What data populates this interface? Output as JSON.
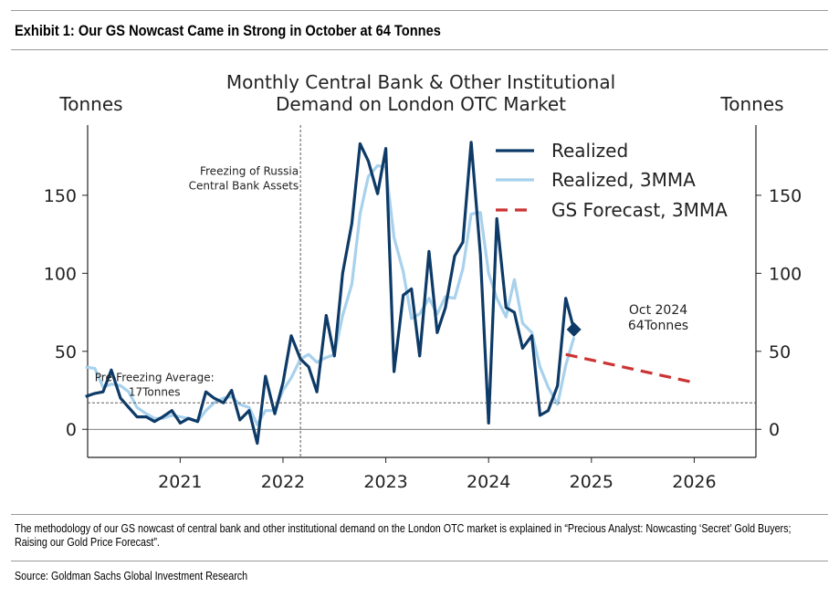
{
  "exhibit": {
    "title": "Exhibit 1: Our GS Nowcast Came in Strong in October at 64 Tonnes",
    "footnote": "The methodology of our GS nowcast of central bank and other institutional demand on the London OTC market is explained in “Precious Analyst: Nowcasting ‘Secret’ Gold Buyers; Raising our Gold Price Forecast”.",
    "source": "Source: Goldman Sachs Global Investment Research"
  },
  "chart_data": {
    "type": "line",
    "title_lines": [
      "Monthly Central Bank & Other Institutional",
      "Demand on London OTC Market"
    ],
    "ylabel_left": "Tonnes",
    "ylabel_right": "Tonnes",
    "xlim": [
      2020.1,
      2026.6
    ],
    "ylim": [
      -18,
      195
    ],
    "x_ticks": [
      2021,
      2022,
      2023,
      2024,
      2025,
      2026
    ],
    "x_tick_labels": [
      "2021",
      "2022",
      "2023",
      "2024",
      "2025",
      "2026"
    ],
    "y_ticks": [
      0,
      50,
      100,
      150
    ],
    "y_tick_labels": [
      "0",
      "50",
      "100",
      "150"
    ],
    "grid": false,
    "legend_position": "top-right",
    "colors": {
      "realized": "#0d3a66",
      "realized_3mma": "#a7d1ec",
      "forecast": "#cc3333",
      "reference": "#444444"
    },
    "series": [
      {
        "name": "Realized",
        "x": [
          2020.08,
          2020.17,
          2020.25,
          2020.33,
          2020.42,
          2020.5,
          2020.58,
          2020.67,
          2020.75,
          2020.83,
          2020.92,
          2021.0,
          2021.08,
          2021.17,
          2021.25,
          2021.33,
          2021.42,
          2021.5,
          2021.58,
          2021.67,
          2021.75,
          2021.83,
          2021.92,
          2022.0,
          2022.08,
          2022.17,
          2022.25,
          2022.33,
          2022.42,
          2022.5,
          2022.58,
          2022.67,
          2022.75,
          2022.83,
          2022.92,
          2023.0,
          2023.08,
          2023.17,
          2023.25,
          2023.33,
          2023.42,
          2023.5,
          2023.58,
          2023.67,
          2023.75,
          2023.83,
          2023.92,
          2024.0,
          2024.08,
          2024.17,
          2024.25,
          2024.33,
          2024.42,
          2024.5,
          2024.58,
          2024.67,
          2024.75,
          2024.83
        ],
        "values": [
          21,
          23,
          24,
          38,
          20,
          14,
          8,
          8,
          5,
          8,
          12,
          4,
          7,
          5,
          24,
          20,
          17,
          25,
          6,
          12,
          -9,
          34,
          10,
          30,
          60,
          45,
          40,
          24,
          73,
          47,
          100,
          132,
          183,
          172,
          151,
          180,
          37,
          86,
          90,
          47,
          114,
          62,
          78,
          111,
          120,
          184,
          112,
          4,
          135,
          78,
          75,
          52,
          60,
          9,
          12,
          28,
          84,
          64
        ]
      },
      {
        "name": "Realized, 3MMA",
        "x": [
          2020.08,
          2020.17,
          2020.25,
          2020.33,
          2020.42,
          2020.5,
          2020.58,
          2020.67,
          2020.75,
          2020.83,
          2020.92,
          2021.0,
          2021.08,
          2021.17,
          2021.25,
          2021.33,
          2021.42,
          2021.5,
          2021.58,
          2021.67,
          2021.75,
          2021.83,
          2021.92,
          2022.0,
          2022.08,
          2022.17,
          2022.25,
          2022.33,
          2022.42,
          2022.5,
          2022.58,
          2022.67,
          2022.75,
          2022.83,
          2022.92,
          2023.0,
          2023.08,
          2023.17,
          2023.25,
          2023.33,
          2023.42,
          2023.5,
          2023.58,
          2023.67,
          2023.75,
          2023.83,
          2023.92,
          2024.0,
          2024.08,
          2024.17,
          2024.25,
          2024.33,
          2024.42,
          2024.5,
          2024.58,
          2024.67,
          2024.75,
          2024.83
        ],
        "values": [
          40,
          39,
          27,
          29,
          28,
          24,
          14,
          10,
          7,
          7,
          9,
          8,
          7,
          5,
          12,
          17,
          20,
          21,
          16,
          14,
          3,
          12,
          12,
          25,
          33,
          45,
          48,
          43,
          46,
          48,
          73,
          93,
          138,
          162,
          169,
          168,
          123,
          101,
          71,
          74,
          84,
          74,
          85,
          84,
          103,
          138,
          139,
          100,
          84,
          72,
          96,
          68,
          62,
          40,
          27,
          16,
          41,
          59
        ]
      },
      {
        "name": "GS Forecast, 3MMA",
        "x": [
          2024.75,
          2026.0
        ],
        "values": [
          48,
          30
        ]
      }
    ],
    "reference_lines": [
      {
        "axis": "y",
        "value": 17,
        "label_lines": [
          "Pre-Freezing Average:",
          "17Tonnes"
        ]
      },
      {
        "axis": "x",
        "value": 2022.17,
        "label_lines": [
          "Freezing of Russia",
          "Central Bank Assets"
        ]
      }
    ],
    "markers": [
      {
        "x": 2024.83,
        "y": 64,
        "label_lines": [
          "Oct 2024",
          "64Tonnes"
        ]
      }
    ]
  }
}
